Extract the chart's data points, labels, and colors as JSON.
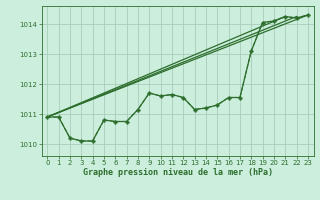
{
  "background_color": "#cceedd",
  "grid_color": "#aaccbb",
  "line_color": "#2d6e2d",
  "title": "Graphe pression niveau de la mer (hPa)",
  "xlim": [
    -0.5,
    23.5
  ],
  "ylim": [
    1009.6,
    1014.6
  ],
  "yticks": [
    1010,
    1011,
    1012,
    1013,
    1014
  ],
  "xticks": [
    0,
    1,
    2,
    3,
    4,
    5,
    6,
    7,
    8,
    9,
    10,
    11,
    12,
    13,
    14,
    15,
    16,
    17,
    18,
    19,
    20,
    21,
    22,
    23
  ],
  "main_x": [
    0,
    1,
    2,
    3,
    4,
    5,
    6,
    7,
    8,
    9,
    10,
    11,
    12,
    13,
    14,
    15,
    16,
    17,
    18,
    19,
    20,
    21,
    22,
    23
  ],
  "main_y": [
    1010.9,
    1010.9,
    1010.2,
    1010.1,
    1010.1,
    1010.8,
    1010.75,
    1010.75,
    1011.15,
    1011.7,
    1011.6,
    1011.65,
    1011.55,
    1011.15,
    1011.2,
    1011.3,
    1011.55,
    1011.55,
    1013.1,
    1014.05,
    1014.1,
    1014.25,
    1014.2,
    1014.3
  ],
  "line1_x": [
    0,
    23
  ],
  "line1_y": [
    1010.9,
    1014.3
  ],
  "line2_x": [
    0,
    22
  ],
  "line2_y": [
    1010.9,
    1014.25
  ],
  "line3_x": [
    0,
    21
  ],
  "line3_y": [
    1010.9,
    1014.25
  ]
}
